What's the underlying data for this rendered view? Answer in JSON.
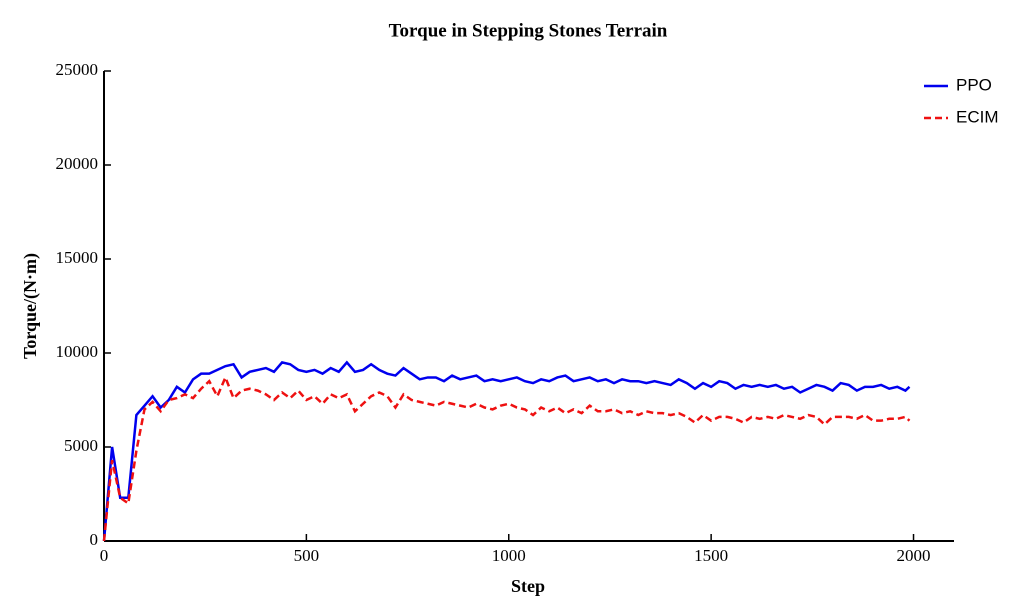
{
  "chart_data": {
    "type": "line",
    "title": "Torque in Stepping Stones Terrain",
    "x_label": "Step",
    "y_label": "Torque/(N·m)",
    "xlim": [
      0,
      2100
    ],
    "ylim": [
      0,
      25000
    ],
    "xticks": [
      0,
      500,
      1000,
      1500,
      2000
    ],
    "yticks": [
      0,
      5000,
      10000,
      15000,
      20000,
      25000
    ],
    "legend": "upper right",
    "grid": false,
    "x": [
      0,
      20,
      40,
      60,
      80,
      100,
      120,
      140,
      160,
      180,
      200,
      220,
      240,
      260,
      280,
      300,
      320,
      340,
      360,
      380,
      400,
      420,
      440,
      460,
      480,
      500,
      520,
      540,
      560,
      580,
      600,
      620,
      640,
      660,
      680,
      700,
      720,
      740,
      760,
      780,
      800,
      820,
      840,
      860,
      880,
      900,
      920,
      940,
      960,
      980,
      1000,
      1020,
      1040,
      1060,
      1080,
      1100,
      1120,
      1140,
      1160,
      1180,
      1200,
      1220,
      1240,
      1260,
      1280,
      1300,
      1320,
      1340,
      1360,
      1380,
      1400,
      1420,
      1440,
      1460,
      1480,
      1500,
      1520,
      1540,
      1560,
      1580,
      1600,
      1620,
      1640,
      1660,
      1680,
      1700,
      1720,
      1740,
      1760,
      1780,
      1800,
      1820,
      1840,
      1860,
      1880,
      1900,
      1920,
      1940,
      1960,
      1980,
      1990
    ],
    "series": [
      {
        "name": "PPO",
        "color": "#0000ee",
        "linestyle": "solid",
        "values": [
          0,
          5000,
          2300,
          2300,
          6700,
          7200,
          7700,
          7100,
          7500,
          8200,
          7900,
          8600,
          8900,
          8900,
          9100,
          9300,
          9400,
          8700,
          9000,
          9100,
          9200,
          9000,
          9500,
          9400,
          9100,
          9000,
          9100,
          8900,
          9200,
          9000,
          9500,
          9000,
          9100,
          9400,
          9100,
          8900,
          8800,
          9200,
          8900,
          8600,
          8700,
          8700,
          8500,
          8800,
          8600,
          8700,
          8800,
          8500,
          8600,
          8500,
          8600,
          8700,
          8500,
          8400,
          8600,
          8500,
          8700,
          8800,
          8500,
          8600,
          8700,
          8500,
          8600,
          8400,
          8600,
          8500,
          8500,
          8400,
          8500,
          8400,
          8300,
          8600,
          8400,
          8100,
          8400,
          8200,
          8500,
          8400,
          8100,
          8300,
          8200,
          8300,
          8200,
          8300,
          8100,
          8200,
          7900,
          8100,
          8300,
          8200,
          8000,
          8400,
          8300,
          8000,
          8200,
          8200,
          8300,
          8100,
          8200,
          8000,
          8200
        ]
      },
      {
        "name": "ECIM",
        "color": "#ee1111",
        "linestyle": "dashed",
        "values": [
          0,
          4300,
          2300,
          2000,
          4800,
          7000,
          7400,
          6900,
          7500,
          7600,
          7800,
          7600,
          8100,
          8500,
          7700,
          8700,
          7600,
          8000,
          8100,
          8000,
          7800,
          7500,
          7900,
          7600,
          8000,
          7500,
          7700,
          7300,
          7800,
          7600,
          7800,
          6900,
          7300,
          7700,
          7900,
          7700,
          7100,
          7800,
          7500,
          7400,
          7300,
          7200,
          7400,
          7300,
          7200,
          7100,
          7300,
          7100,
          7000,
          7200,
          7300,
          7100,
          7000,
          6700,
          7100,
          6900,
          7100,
          6800,
          7000,
          6800,
          7200,
          6900,
          6900,
          7000,
          6800,
          6900,
          6700,
          6900,
          6800,
          6800,
          6700,
          6800,
          6600,
          6300,
          6700,
          6400,
          6600,
          6600,
          6500,
          6300,
          6600,
          6500,
          6600,
          6500,
          6700,
          6600,
          6500,
          6700,
          6600,
          6200,
          6600,
          6600,
          6600,
          6500,
          6700,
          6400,
          6400,
          6500,
          6500,
          6600,
          6400
        ]
      }
    ]
  }
}
